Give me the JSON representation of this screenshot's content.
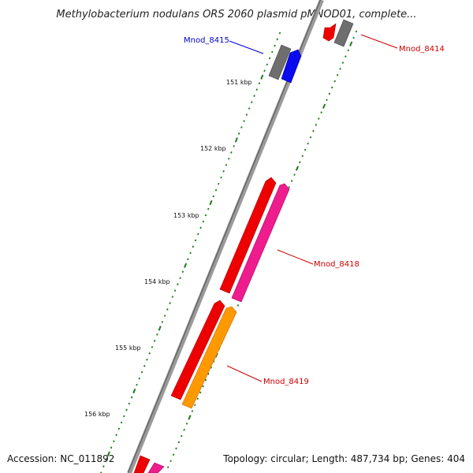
{
  "title": "Methylobacterium nodulans ORS 2060 plasmid pMNOD01, complete...",
  "footer": {
    "accession": "Accession: NC_011892",
    "summary": "Topology: circular; Length: 487,734 bp; Genes: 404"
  },
  "ticks": [
    "151 kbp",
    "152 kbp",
    "153 kbp",
    "154 kbp",
    "155 kbp",
    "156 kbp"
  ],
  "genes": [
    {
      "label": "Mnod_8415",
      "color": "#0000cc"
    },
    {
      "label": "Mnod_8414",
      "color": "#cc0000"
    },
    {
      "label": "Mnod_8418",
      "color": "#cc0000"
    },
    {
      "label": "Mnod_8419",
      "color": "#cc0000"
    }
  ],
  "colors": {
    "backbone": "#808080",
    "tick": "#1e7b1e",
    "red": "#ee0000",
    "gray": "#6e6e6e",
    "blue": "#0a0aee",
    "pink": "#ee1c8c",
    "orange": "#ff9900",
    "label_blue": "#0000cc",
    "label_red": "#cc0000"
  }
}
